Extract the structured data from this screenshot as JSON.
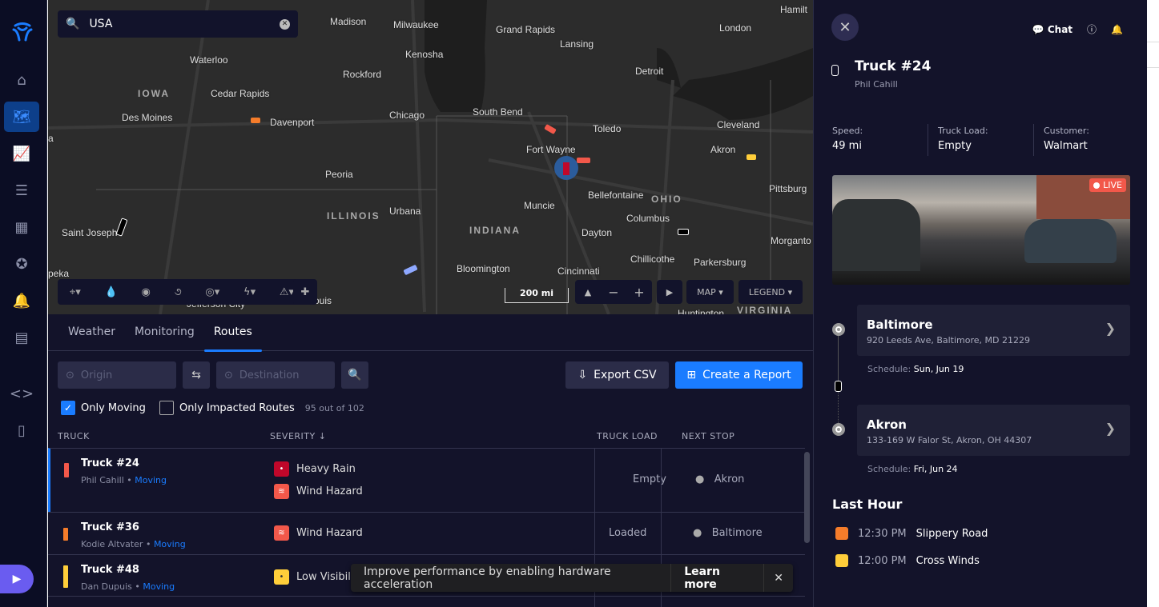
{
  "sidebar": {
    "items": [
      {
        "icon": "home-icon"
      },
      {
        "icon": "map-icon",
        "active": true
      },
      {
        "icon": "analytics-icon"
      },
      {
        "icon": "reports-icon"
      },
      {
        "icon": "apps-search-icon"
      },
      {
        "icon": "favorite-location-icon"
      },
      {
        "icon": "bell-icon"
      },
      {
        "icon": "archive-icon"
      },
      {
        "icon": "code-icon"
      },
      {
        "icon": "document-icon"
      }
    ]
  },
  "map": {
    "search_value": "USA",
    "scale": "200 mi",
    "map_label": "MAP",
    "legend_label": "LEGEND",
    "cities": [
      "Madison",
      "Milwaukee",
      "Grand Rapids",
      "Lansing",
      "Hamilt",
      "London",
      "Waterloo",
      "Kenosha",
      "Rockford",
      "Detroit",
      "Cedar Rapids",
      "Chicago",
      "South Bend",
      "Des Moines",
      "Davenport",
      "Toledo",
      "Cleveland",
      "Fort Wayne",
      "Akron",
      "Peoria",
      "Bellefontaine",
      "Pittsburg",
      "Urbana",
      "Muncie",
      "Columbus",
      "Saint Joseph",
      "Dayton",
      "Morganto",
      "Chillicothe",
      "Parkersburg",
      "Bloomington",
      "Cincinnati",
      "peka",
      "Jefferson City",
      "ouis",
      "a",
      "Huntington"
    ],
    "states": [
      "IOWA",
      "OHIO",
      "ILLINOIS",
      "INDIANA",
      "VIRGINIA"
    ]
  },
  "tabs": [
    {
      "label": "Weather"
    },
    {
      "label": "Monitoring"
    },
    {
      "label": "Routes",
      "active": true
    }
  ],
  "routes": {
    "origin_placeholder": "Origin",
    "destination_placeholder": "Destination",
    "export_label": "Export CSV",
    "create_label": "Create a Report",
    "only_moving": {
      "label": "Only Moving",
      "checked": true
    },
    "only_impacted": {
      "label": "Only Impacted Routes",
      "checked": false
    },
    "count": "95 out of 102",
    "columns": [
      "TRUCK",
      "SEVERITY",
      "TRUCK LOAD",
      "NEXT STOP"
    ],
    "rows": [
      {
        "truck": "Truck #24",
        "driver": "Phil Cahill",
        "status": "Moving",
        "color": "#f2584a",
        "severity": [
          {
            "label": "Heavy Rain",
            "color": "#c0072a"
          },
          {
            "label": "Wind Hazard",
            "color": "#f2584a"
          }
        ],
        "load": "Empty",
        "next": "Akron"
      },
      {
        "truck": "Truck #36",
        "driver": "Kodie Altvater",
        "status": "Moving",
        "color": "#f57c2a",
        "severity": [
          {
            "label": "Wind Hazard",
            "color": "#f2584a"
          }
        ],
        "load": "Loaded",
        "next": "Baltimore"
      },
      {
        "truck": "Truck #48",
        "driver": "Dan Dupuis",
        "status": "Moving",
        "color": "#ffce3a",
        "severity": [
          {
            "label": "Low Visibil",
            "color": "#ffce3a"
          }
        ],
        "load": "",
        "next": ""
      }
    ]
  },
  "toast": {
    "message": "Improve performance by enabling hardware acceleration",
    "action": "Learn more",
    "close": "✕"
  },
  "panel": {
    "chat_label": "Chat",
    "title": "Truck #24",
    "driver": "Phil Cahill",
    "stats": [
      {
        "label": "Speed:",
        "value": "49 mi"
      },
      {
        "label": "Truck Load:",
        "value": "Empty"
      },
      {
        "label": "Customer:",
        "value": "Walmart"
      }
    ],
    "live_label": "LIVE",
    "stops": [
      {
        "name": "Baltimore",
        "address": "920 Leeds Ave, Baltimore, MD 21229",
        "schedule_label": "Schedule:",
        "schedule": "Sun, Jun 19"
      },
      {
        "name": "Akron",
        "address": "133-169 W Falor St, Akron, OH 44307",
        "schedule_label": "Schedule:",
        "schedule": "Fri, Jun 24"
      }
    ],
    "last_hour_title": "Last Hour",
    "events": [
      {
        "time": "12:30 PM",
        "label": "Slippery Road",
        "color": "#f57c2a"
      },
      {
        "time": "12:00 PM",
        "label": "Cross Winds",
        "color": "#ffce3a"
      }
    ]
  },
  "colors": {
    "accent": "#1a7cff",
    "background": "#13132a",
    "sidebar": "#0b0d24"
  }
}
